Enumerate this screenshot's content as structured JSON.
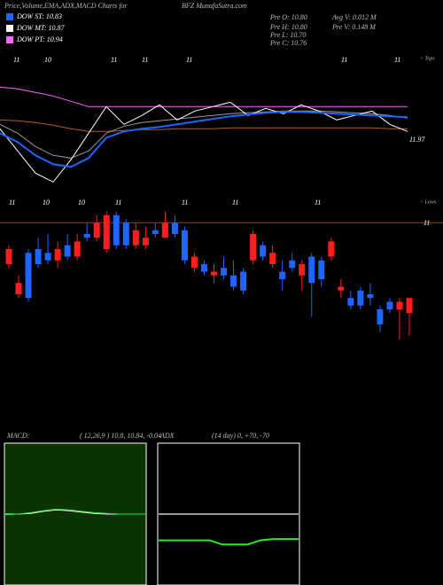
{
  "header": {
    "left": "Price,Volume,EMA,ADX,MACD Charts for",
    "center": "BFZ MunafaSutra.com"
  },
  "legend": [
    {
      "name": "DOW ST: 10.83",
      "color": "#1e64ff"
    },
    {
      "name": "DOW MT: 10.87",
      "color": "#ffffff"
    },
    {
      "name": "DOW PT: 10.94",
      "color": "#ff66ff"
    }
  ],
  "info": [
    "Pre  O: 10.80",
    "Pre  H: 10.80",
    "Pre  L: 10.70",
    "Pre  C: 10.76",
    "Avg V: 0.012  M",
    "Pre  V: 0.148 M"
  ],
  "top_marks": [
    "11",
    "10",
    "11",
    "11",
    "11",
    "11",
    "11"
  ],
  "low_marks": [
    "11",
    "10",
    "10",
    "11",
    "11",
    "11",
    "11"
  ],
  "tops_label": "< Tops",
  "lows_label": "< Lows",
  "chart_data": [
    {
      "type": "line",
      "ylim": [
        11.8,
        12.25
      ],
      "yticks": [
        11.97
      ],
      "series": [
        {
          "color": "#ff66ff",
          "values": [
            12.15,
            12.144,
            12.132,
            12.12,
            12.102,
            12.084,
            12.084,
            12.084,
            12.084,
            12.084,
            12.084,
            12.084,
            12.084,
            12.084,
            12.084,
            12.084,
            12.084,
            12.084,
            12.084,
            12.084,
            12.084,
            12.084,
            12.084,
            12.084
          ]
        },
        {
          "color": "#b06020",
          "values": [
            12.039,
            12.036,
            12.03,
            12.021,
            12.009,
            12.0,
            12.0,
            12.003,
            12.006,
            12.006,
            12.009,
            12.009,
            12.009,
            12.012,
            12.012,
            12.012,
            12.012,
            12.012,
            12.012,
            12.012,
            12.012,
            12.012,
            12.009,
            12.009
          ]
        },
        {
          "color": "#999999",
          "values": [
            12.024,
            11.994,
            11.949,
            11.919,
            11.91,
            11.934,
            11.994,
            12.018,
            12.03,
            12.036,
            12.042,
            12.048,
            12.054,
            12.06,
            12.063,
            12.066,
            12.069,
            12.069,
            12.069,
            12.066,
            12.063,
            12.06,
            12.054,
            12.045
          ]
        },
        {
          "color": "#ffffff",
          "values": [
            12.009,
            11.934,
            11.859,
            11.829,
            11.904,
            11.994,
            12.084,
            12.024,
            12.054,
            12.09,
            12.039,
            12.069,
            12.084,
            12.099,
            12.054,
            12.078,
            12.06,
            12.09,
            12.069,
            12.039,
            12.054,
            12.069,
            12.024,
            12.0
          ]
        },
        {
          "color": "#1e64ff",
          "values": [
            11.994,
            11.964,
            11.919,
            11.889,
            11.88,
            11.91,
            11.979,
            12.0,
            12.009,
            12.015,
            12.024,
            12.033,
            12.042,
            12.051,
            12.057,
            12.063,
            12.066,
            12.066,
            12.063,
            12.06,
            12.057,
            12.054,
            12.051,
            12.048
          ]
        }
      ]
    },
    {
      "type": "candlestick",
      "ylim": [
        10.65,
        11.05
      ],
      "yticks": [
        11
      ],
      "up_color": "#1e64ff",
      "down_color": "#ff1e1e",
      "open": [
        10.93,
        10.84,
        10.8,
        10.89,
        10.9,
        10.93,
        10.91,
        10.95,
        10.96,
        11.0,
        11.02,
        10.94,
        10.94,
        10.98,
        10.96,
        10.97,
        11.0,
        10.97,
        10.9,
        10.91,
        10.87,
        10.87,
        10.86,
        10.83,
        10.82,
        10.97,
        10.91,
        10.92,
        10.85,
        10.88,
        10.89,
        10.84,
        10.85,
        10.95,
        10.83,
        10.78,
        10.78,
        10.8,
        10.73,
        10.77,
        10.79,
        10.8
      ],
      "high": [
        10.94,
        10.86,
        10.93,
        10.96,
        10.97,
        10.95,
        10.97,
        10.97,
        11.0,
        11.02,
        11.03,
        11.03,
        11.01,
        11.0,
        10.99,
        11.0,
        11.03,
        11.02,
        10.99,
        10.92,
        10.9,
        10.89,
        10.91,
        10.9,
        10.88,
        10.98,
        10.95,
        10.94,
        10.9,
        10.92,
        10.9,
        10.92,
        10.91,
        10.96,
        10.85,
        10.82,
        10.83,
        10.84,
        10.78,
        10.8,
        10.8,
        10.8
      ],
      "low": [
        10.88,
        10.8,
        10.79,
        10.88,
        10.89,
        10.88,
        10.9,
        10.9,
        10.95,
        10.95,
        10.92,
        10.93,
        10.93,
        10.93,
        10.93,
        10.96,
        10.96,
        10.96,
        10.89,
        10.87,
        10.86,
        10.84,
        10.85,
        10.82,
        10.81,
        10.89,
        10.9,
        10.88,
        10.82,
        10.87,
        10.82,
        10.75,
        10.83,
        10.9,
        10.8,
        10.77,
        10.77,
        10.78,
        10.71,
        10.76,
        10.69,
        10.7
      ],
      "close": [
        10.89,
        10.81,
        10.92,
        10.93,
        10.92,
        10.9,
        10.94,
        10.91,
        10.97,
        10.96,
        10.93,
        11.02,
        11.0,
        10.94,
        10.94,
        10.98,
        10.96,
        11.0,
        10.98,
        10.88,
        10.89,
        10.86,
        10.88,
        10.86,
        10.87,
        10.9,
        10.94,
        10.89,
        10.87,
        10.9,
        10.86,
        10.91,
        10.9,
        10.91,
        10.82,
        10.8,
        10.82,
        10.81,
        10.77,
        10.79,
        10.77,
        10.76
      ]
    },
    {
      "type": "line",
      "title": "MACD:",
      "subtitle": "( 12,26,9 ) 10.8, 10.84, -0.04",
      "background": "#0a3300",
      "ylim": [
        9.8,
        11.8
      ],
      "series": [
        {
          "color": "#ffffff",
          "values": [
            10.8,
            10.8,
            10.81,
            10.84,
            10.86,
            10.85,
            10.83,
            10.81,
            10.8,
            10.8,
            10.8,
            10.8
          ]
        },
        {
          "color": "#33dd33",
          "values": [
            10.79,
            10.8,
            10.82,
            10.85,
            10.87,
            10.86,
            10.84,
            10.82,
            10.81,
            10.8,
            10.8,
            10.8
          ]
        }
      ]
    },
    {
      "type": "line",
      "title": "ADX",
      "subtitle": "(14  day) 0, +70, -70",
      "background": "#000000",
      "ylim": [
        0,
        100
      ],
      "series": [
        {
          "color": "#999999",
          "values": [
            50,
            50,
            50,
            50,
            50,
            50,
            50,
            50,
            50,
            50,
            50,
            50
          ]
        },
        {
          "color": "#22ee22",
          "values": [
            31,
            31,
            31,
            31,
            31,
            28,
            28,
            28,
            31,
            32,
            32,
            32
          ]
        }
      ]
    }
  ]
}
